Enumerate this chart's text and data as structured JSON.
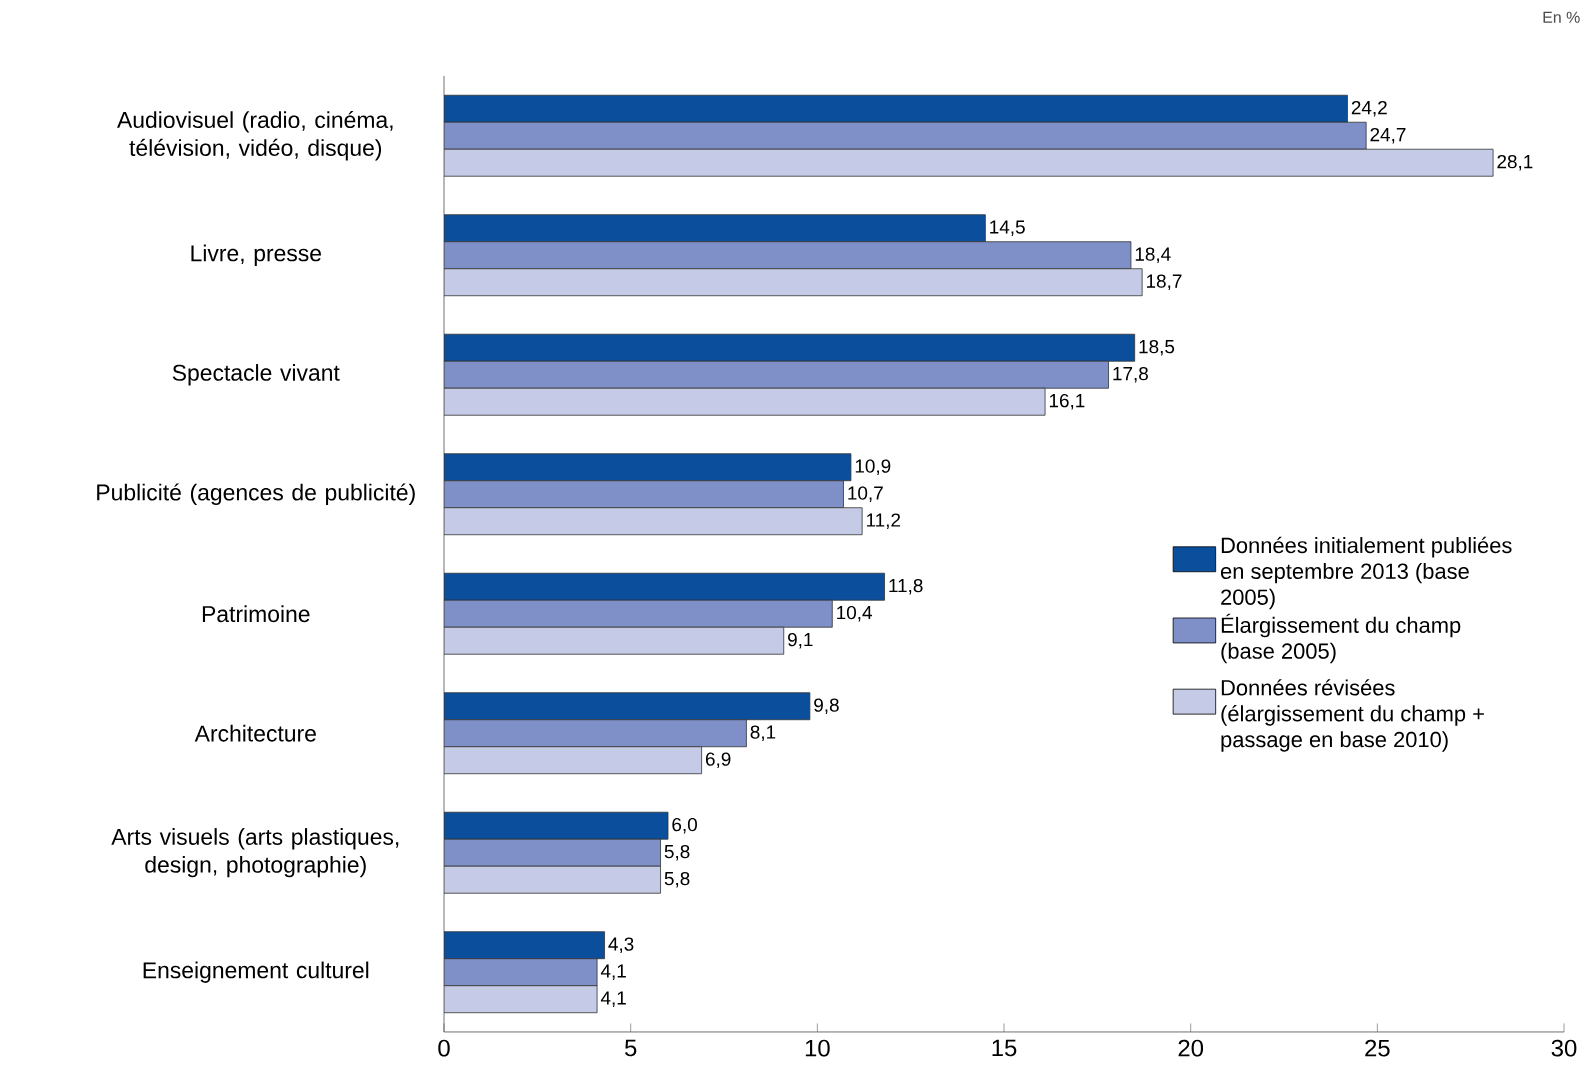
{
  "chart_data": {
    "type": "bar",
    "orientation": "horizontal",
    "categories": [
      "Audiovisuel (radio, cinéma, télévision, vidéo, disque)",
      "Livre, presse",
      "Spectacle vivant",
      "Publicité (agences de publicité)",
      "Patrimoine",
      "Architecture",
      "Arts visuels (arts plastiques, design, photographie)",
      "Enseignement culturel"
    ],
    "series": [
      {
        "name": "Données initialement publiées en septembre 2013 (base 2005)",
        "color": "#0b4f9c",
        "values": [
          24.2,
          14.5,
          18.5,
          10.9,
          11.8,
          9.8,
          6.0,
          4.3
        ],
        "value_labels": [
          "24,2",
          "14,5",
          "18,5",
          "10,9",
          "11,8",
          "9,8",
          "6,0",
          "4,3"
        ]
      },
      {
        "name": "Élargissement du champ (base 2005)",
        "color": "#7f8fc8",
        "values": [
          24.7,
          18.4,
          17.8,
          10.7,
          10.4,
          8.1,
          5.8,
          4.1
        ],
        "value_labels": [
          "24,7",
          "18,4",
          "17,8",
          "10,7",
          "10,4",
          "8,1",
          "5,8",
          "4,1"
        ]
      },
      {
        "name": "Données révisées (élargissement du champ + passage en base 2010)",
        "color": "#c5cbe6",
        "values": [
          28.1,
          18.7,
          16.1,
          11.2,
          9.1,
          6.9,
          5.8,
          4.1
        ],
        "value_labels": [
          "28,1",
          "18,7",
          "16,1",
          "11,2",
          "9,1",
          "6,9",
          "5,8",
          "4,1"
        ]
      }
    ],
    "xlim": [
      0,
      30
    ],
    "xticks": [
      0,
      5,
      10,
      15,
      20,
      25,
      30
    ],
    "legend": "right",
    "grid": false,
    "annotations": [
      "En %"
    ]
  }
}
